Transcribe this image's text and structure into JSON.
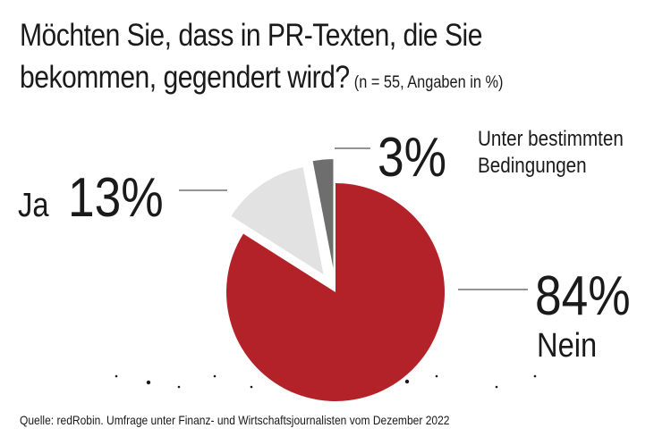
{
  "chart_data": {
    "type": "pie",
    "title": "Möchten Sie, dass in PR-Texten, die Sie bekommen, gegendert wird?",
    "subtitle": "(n = 55, Angaben in %)",
    "unit": "%",
    "slices": [
      {
        "label": "Nein",
        "value": 84,
        "display": "84%",
        "color": "#b32228"
      },
      {
        "label": "Ja",
        "value": 13,
        "display": "13%",
        "color": "#e2e2e2"
      },
      {
        "label": "Unter bestimmten Bedingungen",
        "value": 3,
        "display": "3%",
        "color": "#6e6e6e"
      }
    ],
    "source": "Quelle: redRobin. Umfrage unter Finanz- und Wirtschaftsjournalisten vom Dezember 2022"
  },
  "colors": {
    "leader_line": "#555555",
    "text": "#1a1a1a"
  }
}
